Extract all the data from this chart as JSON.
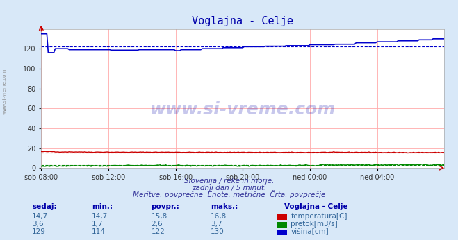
{
  "title": "Voglajna - Celje",
  "bg_color": "#d8e8f8",
  "plot_bg_color": "#ffffff",
  "grid_color": "#ffaaaa",
  "x_labels": [
    "sob 08:00",
    "sob 12:00",
    "sob 16:00",
    "sob 20:00",
    "ned 00:00",
    "ned 04:00"
  ],
  "x_ticks_pos": [
    0,
    48,
    96,
    144,
    192,
    240
  ],
  "total_points": 289,
  "ylim": [
    0,
    140
  ],
  "yticks": [
    0,
    20,
    40,
    60,
    80,
    100,
    120
  ],
  "temp_color": "#cc0000",
  "pretok_color": "#008800",
  "visina_color": "#0000cc",
  "avg_temp": 15.8,
  "avg_pretok": 2.6,
  "avg_visina": 122,
  "subtitle1": "Slovenija / reke in morje.",
  "subtitle2": "zadnji dan / 5 minut.",
  "subtitle3": "Meritve: povprečne  Enote: metrične  Črta: povprečje",
  "watermark": "www.si-vreme.com",
  "table_headers": [
    "sedaj:",
    "min.:",
    "povpr.:",
    "maks.:"
  ],
  "table_label": "Voglajna - Celje",
  "rows": [
    {
      "sedaj": "14,7",
      "min": "14,7",
      "povpr": "15,8",
      "maks": "16,8",
      "label": "temperatura[C]",
      "color": "#cc0000"
    },
    {
      "sedaj": "3,6",
      "min": "1,7",
      "povpr": "2,6",
      "maks": "3,7",
      "label": "pretok[m3/s]",
      "color": "#008800"
    },
    {
      "sedaj": "129",
      "min": "114",
      "povpr": "122",
      "maks": "130",
      "label": "višina[cm]",
      "color": "#0000cc"
    }
  ],
  "sidebar_text": "www.si-vreme.com",
  "arrow_color": "#cc0000"
}
